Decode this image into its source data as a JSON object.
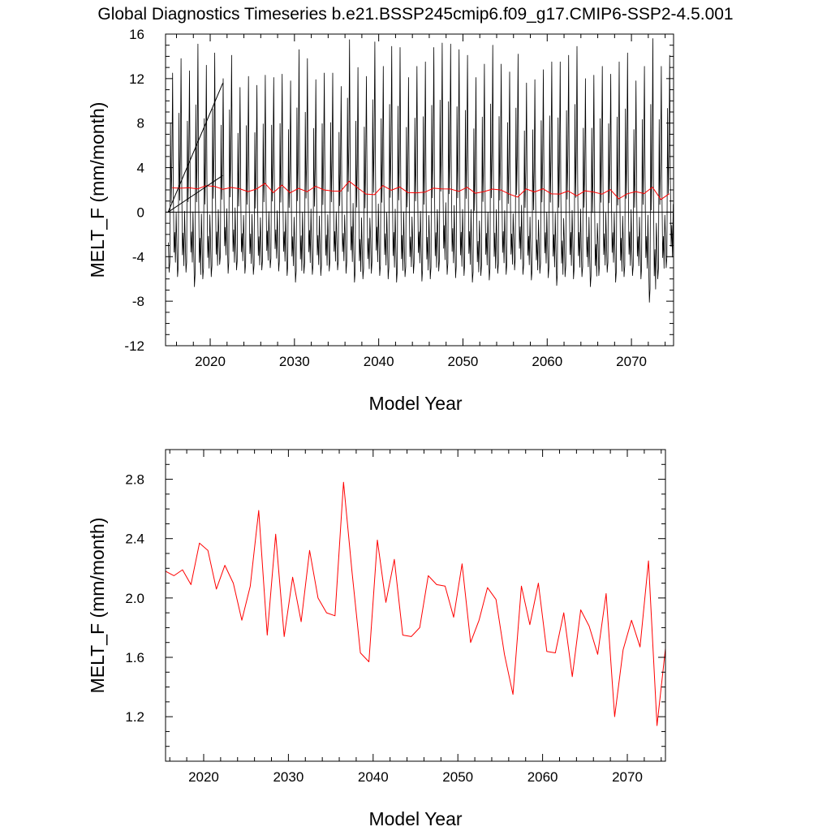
{
  "figure": {
    "title": "Global Diagnostics Timeseries b.e21.BSSP245cmip6.f09_g17.CMIP6-SSP2-4.5.001"
  },
  "colors": {
    "monthly_series": "#000000",
    "annual_series": "#ff0000",
    "axes": "#000000"
  },
  "chart_data": [
    {
      "type": "line",
      "panel": "top",
      "xlabel": "Model Year",
      "ylabel": "MELT_F (mm/month)",
      "xlim": [
        2014.7,
        2075.0
      ],
      "ylim": [
        -12,
        16
      ],
      "x_ticks": [
        2020,
        2030,
        2040,
        2050,
        2060,
        2070
      ],
      "x_tick_labels": [
        "2020",
        "2030",
        "2040",
        "2050",
        "2060",
        "2070"
      ],
      "y_ticks": [
        -12,
        -8,
        -4,
        0,
        4,
        8,
        12,
        16
      ],
      "y_tick_labels": [
        "-12",
        "-8",
        "-4",
        "0",
        "4",
        "8",
        "12",
        "16"
      ],
      "zero_line": true,
      "grid": false,
      "legend": "none",
      "annotation_lines": [
        {
          "x": [
            2015.0,
            2021.5
          ],
          "y": [
            0,
            11.6
          ]
        },
        {
          "x": [
            2015.0,
            2021.5
          ],
          "y": [
            0,
            3.3
          ]
        }
      ],
      "series": [
        {
          "kind": "monthly_seasonal_cycle",
          "start_year": 2015,
          "end_year": 2074,
          "annual_peaks": [
            12.5,
            13.8,
            12.7,
            15.1,
            13.2,
            14.3,
            12.0,
            14.1,
            11.2,
            12.2,
            11.4,
            12.3,
            12.1,
            12.4,
            11.8,
            14.6,
            13.8,
            11.9,
            12.5,
            12.5,
            11.3,
            15.5,
            13.0,
            12.2,
            15.3,
            13.1,
            14.9,
            14.8,
            12.1,
            13.1,
            13.5,
            14.8,
            15.2,
            15.1,
            14.6,
            14.1,
            12.1,
            13.3,
            15.0,
            13.3,
            12.6,
            14.2,
            11.6,
            11.9,
            12.8,
            13.5,
            13.5,
            14.1,
            14.9,
            12.0,
            12.3,
            13.1,
            12.4,
            13.5,
            14.3,
            11.8,
            13.1,
            15.6,
            13.1,
            14.1
          ],
          "annual_troughs": [
            -5.4,
            -5.8,
            -5.4,
            -6.7,
            -6.0,
            -5.8,
            -4.7,
            -5.5,
            -5.2,
            -5.5,
            -5.6,
            -5.2,
            -5.0,
            -5.3,
            -5.7,
            -6.3,
            -5.5,
            -5.6,
            -5.7,
            -5.3,
            -5.2,
            -5.5,
            -6.3,
            -6.0,
            -5.5,
            -5.7,
            -6.0,
            -6.3,
            -5.8,
            -5.5,
            -6.2,
            -6.0,
            -5.3,
            -5.6,
            -5.9,
            -5.7,
            -6.3,
            -5.7,
            -6.1,
            -5.5,
            -5.6,
            -5.2,
            -5.6,
            -6.1,
            -5.5,
            -5.9,
            -6.6,
            -5.8,
            -6.0,
            -5.8,
            -6.7,
            -5.7,
            -5.4,
            -6.3,
            -5.8,
            -5.7,
            -6.0,
            -8.1,
            -6.0,
            -5.0
          ]
        },
        {
          "kind": "annual_mean",
          "x": [
            2015.5,
            2016.5,
            2017.5,
            2018.5,
            2019.5,
            2020.5,
            2021.5,
            2022.5,
            2023.5,
            2024.5,
            2025.5,
            2026.5,
            2027.5,
            2028.5,
            2029.5,
            2030.5,
            2031.5,
            2032.5,
            2033.5,
            2034.5,
            2035.5,
            2036.5,
            2037.5,
            2038.5,
            2039.5,
            2040.5,
            2041.5,
            2042.5,
            2043.5,
            2044.5,
            2045.5,
            2046.5,
            2047.5,
            2048.5,
            2049.5,
            2050.5,
            2051.5,
            2052.5,
            2053.5,
            2054.5,
            2055.5,
            2056.5,
            2057.5,
            2058.5,
            2059.5,
            2060.5,
            2061.5,
            2062.5,
            2063.5,
            2064.5,
            2065.5,
            2066.5,
            2067.5,
            2068.5,
            2069.5,
            2070.5,
            2071.5,
            2072.5,
            2073.5,
            2074.5
          ],
          "y": [
            2.18,
            2.15,
            2.19,
            2.09,
            2.37,
            2.32,
            2.06,
            2.22,
            2.1,
            1.85,
            2.08,
            2.59,
            1.75,
            2.43,
            1.74,
            2.14,
            1.84,
            2.32,
            2.0,
            1.9,
            1.88,
            2.78,
            2.18,
            1.63,
            1.57,
            2.39,
            1.97,
            2.26,
            1.75,
            1.74,
            1.8,
            2.15,
            2.09,
            2.08,
            1.87,
            2.23,
            1.7,
            1.85,
            2.07,
            1.99,
            1.62,
            1.35,
            2.08,
            1.82,
            2.1,
            1.64,
            1.63,
            1.9,
            1.47,
            1.92,
            1.81,
            1.62,
            2.03,
            1.2,
            1.65,
            1.85,
            1.67,
            2.25,
            1.14,
            1.66
          ]
        }
      ]
    },
    {
      "type": "line",
      "panel": "bottom",
      "xlabel": "Model Year",
      "ylabel": "MELT_F (mm/month)",
      "xlim": [
        2015.5,
        2074.5
      ],
      "ylim": [
        0.9,
        3.0
      ],
      "x_ticks": [
        2020,
        2030,
        2040,
        2050,
        2060,
        2070
      ],
      "x_tick_labels": [
        "2020",
        "2030",
        "2040",
        "2050",
        "2060",
        "2070"
      ],
      "y_ticks": [
        1.2,
        1.6,
        2.0,
        2.4,
        2.8
      ],
      "y_tick_labels": [
        "1.2",
        "1.6",
        "2.0",
        "2.4",
        "2.8"
      ],
      "grid": false,
      "legend": "none",
      "series": [
        {
          "kind": "annual_mean",
          "x": [
            2015.5,
            2016.5,
            2017.5,
            2018.5,
            2019.5,
            2020.5,
            2021.5,
            2022.5,
            2023.5,
            2024.5,
            2025.5,
            2026.5,
            2027.5,
            2028.5,
            2029.5,
            2030.5,
            2031.5,
            2032.5,
            2033.5,
            2034.5,
            2035.5,
            2036.5,
            2037.5,
            2038.5,
            2039.5,
            2040.5,
            2041.5,
            2042.5,
            2043.5,
            2044.5,
            2045.5,
            2046.5,
            2047.5,
            2048.5,
            2049.5,
            2050.5,
            2051.5,
            2052.5,
            2053.5,
            2054.5,
            2055.5,
            2056.5,
            2057.5,
            2058.5,
            2059.5,
            2060.5,
            2061.5,
            2062.5,
            2063.5,
            2064.5,
            2065.5,
            2066.5,
            2067.5,
            2068.5,
            2069.5,
            2070.5,
            2071.5,
            2072.5,
            2073.5,
            2074.5
          ],
          "y": [
            2.18,
            2.15,
            2.19,
            2.09,
            2.37,
            2.32,
            2.06,
            2.22,
            2.1,
            1.85,
            2.08,
            2.59,
            1.75,
            2.43,
            1.74,
            2.14,
            1.84,
            2.32,
            2.0,
            1.9,
            1.88,
            2.78,
            2.18,
            1.63,
            1.57,
            2.39,
            1.97,
            2.26,
            1.75,
            1.74,
            1.8,
            2.15,
            2.09,
            2.08,
            1.87,
            2.23,
            1.7,
            1.85,
            2.07,
            1.99,
            1.62,
            1.35,
            2.08,
            1.82,
            2.1,
            1.64,
            1.63,
            1.9,
            1.47,
            1.92,
            1.81,
            1.62,
            2.03,
            1.2,
            1.65,
            1.85,
            1.67,
            2.25,
            1.14,
            1.66
          ]
        }
      ]
    }
  ]
}
